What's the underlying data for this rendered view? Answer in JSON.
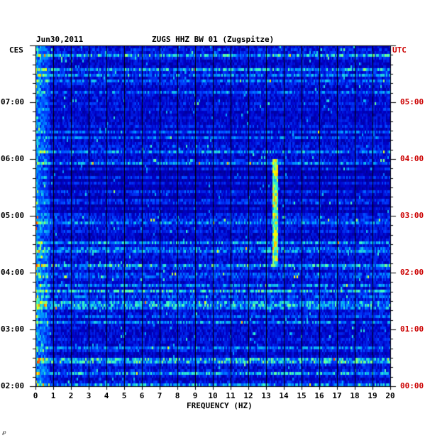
{
  "header": {
    "date": "Jun30,2011",
    "station_title": "ZUGS HHZ BW 01 (Zugspitze)"
  },
  "chart_data": {
    "type": "heatmap",
    "title": "ZUGS HHZ BW 01 (Zugspitze)",
    "date": "Jun30,2011",
    "xlabel": "FREQUENCY (HZ)",
    "xlim": [
      0,
      20
    ],
    "x_ticks": [
      "0",
      "1",
      "2",
      "3",
      "4",
      "5",
      "6",
      "7",
      "8",
      "9",
      "10",
      "11",
      "12",
      "13",
      "14",
      "15",
      "16",
      "17",
      "18",
      "19",
      "20"
    ],
    "left_axis_label": "CES",
    "right_axis_label": "UTC",
    "left_ticks": [
      "07:00",
      "06:00",
      "05:00",
      "04:00",
      "03:00",
      "02:00"
    ],
    "right_ticks": [
      "05:00",
      "04:00",
      "03:00",
      "02:00",
      "01:00",
      "00:00"
    ],
    "time_range_ces": [
      "02:00",
      "07:50"
    ],
    "grid": true,
    "colormap": [
      "#00007a",
      "#0000c8",
      "#0040ff",
      "#00a0ff",
      "#40ffc0",
      "#ffff00",
      "#ff4000"
    ],
    "features": [
      {
        "name": "tonal_line",
        "frequency_hz": 13.5,
        "from_ces": "04:10",
        "to_ces": "06:00"
      },
      {
        "name": "low_frequency_energy",
        "frequency_hz_range": [
          0,
          1.5
        ]
      }
    ]
  },
  "footer": {
    "mark": "℘"
  }
}
